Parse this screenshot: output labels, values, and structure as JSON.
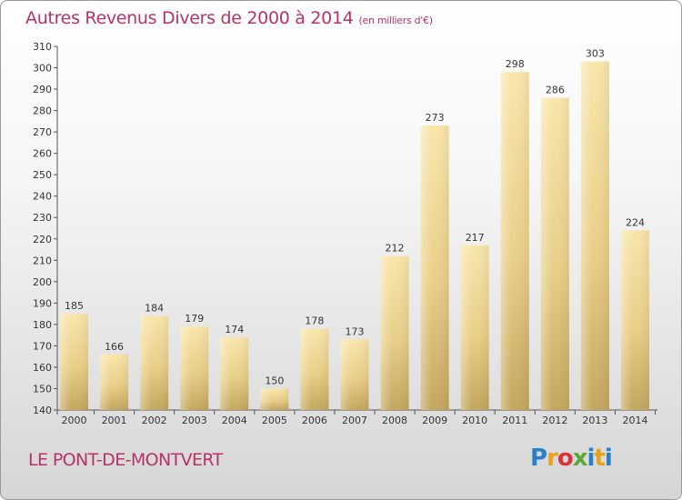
{
  "title": "Autres Revenus Divers de 2000 à 2014",
  "subtitle": "(en milliers d'€)",
  "commune": "LE PONT-DE-MONTVERT",
  "logo_text": "Proxiti",
  "colors": {
    "accent": "#b83267",
    "bar_light": "#f8e3a6",
    "bar_dark": "#c4a75f"
  },
  "chart_data": {
    "type": "bar",
    "categories": [
      "2000",
      "2001",
      "2002",
      "2003",
      "2004",
      "2005",
      "2006",
      "2007",
      "2008",
      "2009",
      "2010",
      "2011",
      "2012",
      "2013",
      "2014"
    ],
    "values": [
      185,
      166,
      184,
      179,
      174,
      150,
      178,
      173,
      212,
      273,
      217,
      298,
      286,
      303,
      224
    ],
    "title": "Autres Revenus Divers de 2000 à 2014",
    "subtitle": "(en milliers d'€)",
    "ylim": [
      140,
      310
    ],
    "yticks": [
      140,
      150,
      160,
      170,
      180,
      190,
      200,
      210,
      220,
      230,
      240,
      250,
      260,
      270,
      280,
      290,
      300,
      310
    ],
    "grid": false,
    "data_labels": true
  }
}
